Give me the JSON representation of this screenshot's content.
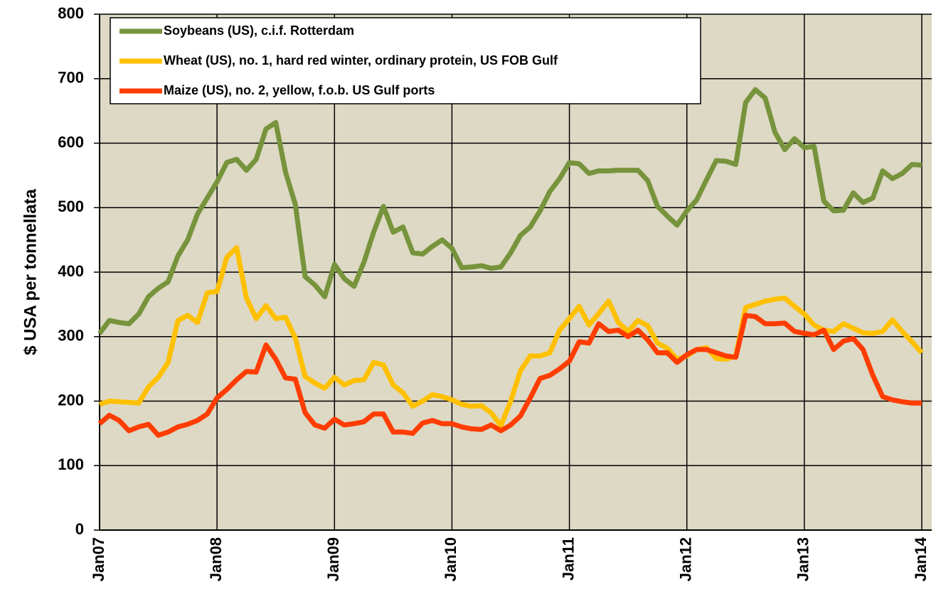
{
  "chart_data": {
    "type": "line",
    "ylabel": "$ USA per tonnellata",
    "categories": [
      "Jan07",
      null,
      null,
      null,
      null,
      null,
      null,
      null,
      null,
      null,
      null,
      null,
      "Jan08",
      null,
      null,
      null,
      null,
      null,
      null,
      null,
      null,
      null,
      null,
      null,
      "Jan09",
      null,
      null,
      null,
      null,
      null,
      null,
      null,
      null,
      null,
      null,
      null,
      "Jan10",
      null,
      null,
      null,
      null,
      null,
      null,
      null,
      null,
      null,
      null,
      null,
      "Jan11",
      null,
      null,
      null,
      null,
      null,
      null,
      null,
      null,
      null,
      null,
      null,
      "Jan12",
      null,
      null,
      null,
      null,
      null,
      null,
      null,
      null,
      null,
      null,
      null,
      "Jan13",
      null,
      null,
      null,
      null,
      null,
      null,
      null,
      null,
      null,
      null,
      null,
      "Jan14"
    ],
    "ylim": [
      0,
      800
    ],
    "yticks": [
      0,
      100,
      200,
      300,
      400,
      500,
      600,
      700,
      800
    ],
    "grid": true,
    "legend": "upper left",
    "series": [
      {
        "name": "Soybeans (US), c.i.f. Rotterdam",
        "color": "#77933c",
        "values": [
          305,
          325,
          322,
          320,
          335,
          362,
          375,
          385,
          425,
          450,
          490,
          515,
          540,
          570,
          575,
          558,
          575,
          622,
          632,
          555,
          505,
          393,
          380,
          362,
          412,
          390,
          378,
          415,
          462,
          502,
          462,
          470,
          430,
          428,
          440,
          450,
          437,
          407,
          408,
          410,
          406,
          408,
          430,
          457,
          470,
          495,
          525,
          545,
          570,
          568,
          553,
          557,
          557,
          558,
          558,
          558,
          542,
          502,
          487,
          473,
          495,
          512,
          543,
          573,
          572,
          567,
          663,
          683,
          670,
          617,
          590,
          607,
          593,
          595,
          510,
          495,
          496,
          523,
          508,
          515,
          557,
          545,
          553,
          567,
          566
        ]
      },
      {
        "name": "Wheat (US), no. 1, hard red winter, ordinary protein, US FOB Gulf",
        "color": "#ffc000",
        "values": [
          195,
          200,
          199,
          198,
          197,
          222,
          237,
          260,
          325,
          333,
          322,
          368,
          370,
          423,
          438,
          360,
          328,
          348,
          328,
          330,
          298,
          238,
          228,
          220,
          237,
          225,
          232,
          233,
          260,
          256,
          225,
          213,
          192,
          200,
          210,
          207,
          202,
          195,
          192,
          193,
          182,
          162,
          200,
          247,
          270,
          270,
          275,
          310,
          328,
          347,
          318,
          336,
          355,
          322,
          308,
          325,
          317,
          290,
          282,
          265,
          270,
          280,
          283,
          266,
          265,
          270,
          345,
          350,
          355,
          358,
          360,
          347,
          335,
          318,
          310,
          308,
          320,
          313,
          306,
          305,
          308,
          326,
          308,
          292,
          275
        ]
      },
      {
        "name": "Maize (US), no. 2, yellow, f.o.b. US Gulf ports",
        "color": "#ff3d00",
        "values": [
          165,
          178,
          170,
          154,
          160,
          164,
          147,
          152,
          160,
          164,
          170,
          180,
          205,
          218,
          233,
          246,
          245,
          287,
          265,
          236,
          234,
          182,
          163,
          158,
          172,
          163,
          165,
          168,
          180,
          180,
          152,
          152,
          150,
          166,
          170,
          165,
          165,
          160,
          157,
          156,
          163,
          154,
          163,
          177,
          205,
          235,
          240,
          250,
          262,
          292,
          290,
          320,
          308,
          310,
          300,
          310,
          295,
          275,
          275,
          260,
          272,
          280,
          280,
          275,
          270,
          268,
          333,
          331,
          320,
          320,
          321,
          308,
          305,
          303,
          310,
          280,
          293,
          297,
          280,
          240,
          207,
          202,
          199,
          197,
          197
        ]
      }
    ]
  }
}
